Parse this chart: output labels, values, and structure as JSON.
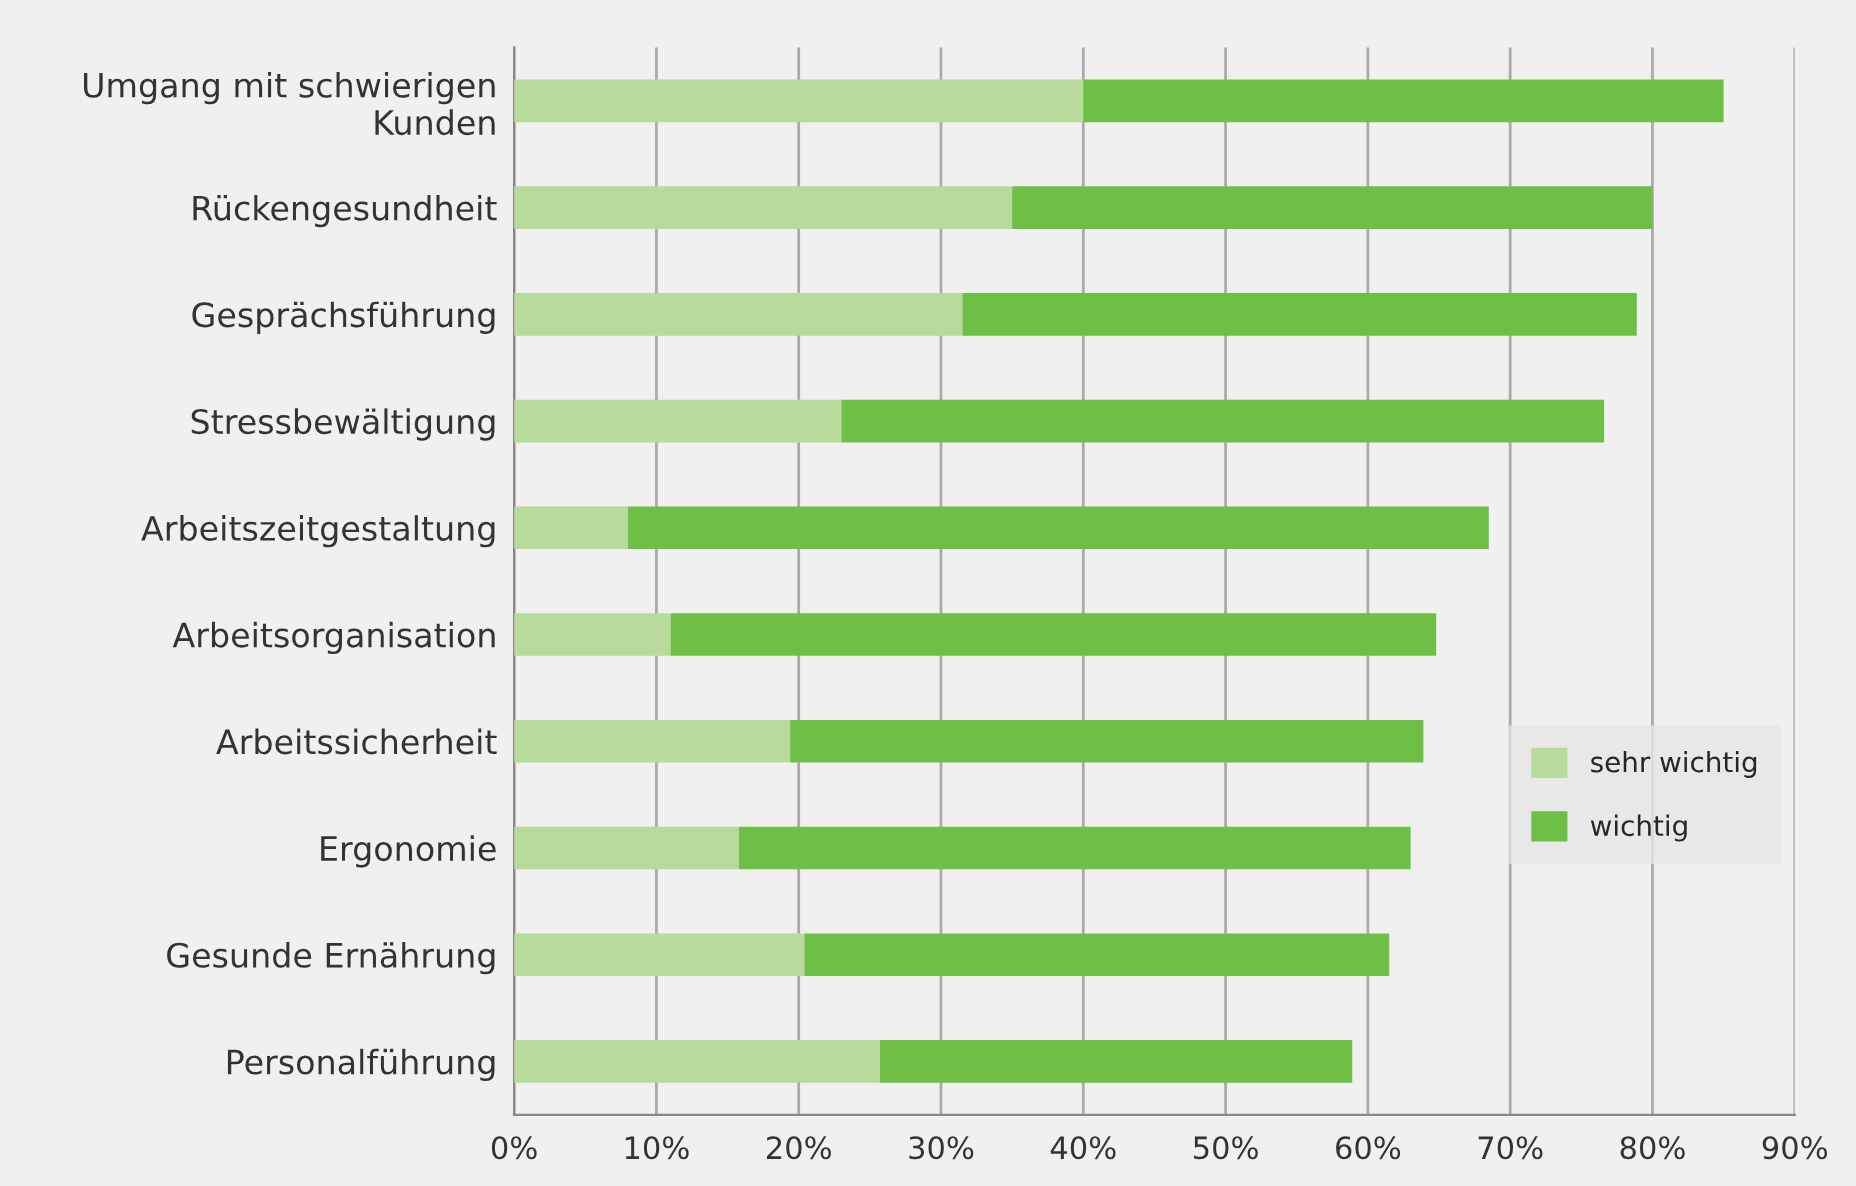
{
  "chart_data": {
    "type": "bar",
    "orientation": "horizontal",
    "stacked": true,
    "categories": [
      "Umgang mit schwierigen\nKunden",
      "Rückengesundheit",
      "Gesprächsführung",
      "Stressbewältigung",
      "Arbeitszeitgestaltung",
      "Arbeitsorganisation",
      "Arbeitssicherheit",
      "Ergonomie",
      "Gesunde Ernährung",
      "Personalführung"
    ],
    "series": [
      {
        "name": "sehr wichtig",
        "color": "#b8da9a",
        "values": [
          40,
          35,
          31.5,
          23,
          8,
          11,
          19.4,
          15.8,
          20.4,
          25.7
        ]
      },
      {
        "name": "wichtig",
        "color": "#6dbf45",
        "values": [
          45,
          45,
          47.4,
          53.6,
          60.5,
          53.8,
          44.5,
          47.2,
          41.1,
          33.2
        ]
      }
    ],
    "xlim": [
      0,
      90
    ],
    "xticks": [
      {
        "value": 0,
        "label": "0%"
      },
      {
        "value": 10,
        "label": "10%"
      },
      {
        "value": 20,
        "label": "20%"
      },
      {
        "value": 30,
        "label": "30%"
      },
      {
        "value": 40,
        "label": "40%"
      },
      {
        "value": 50,
        "label": "50%"
      },
      {
        "value": 60,
        "label": "60%"
      },
      {
        "value": 70,
        "label": "70%"
      },
      {
        "value": 80,
        "label": "80%"
      },
      {
        "value": 90,
        "label": "90%"
      }
    ],
    "grid": "x",
    "legend": "right"
  }
}
